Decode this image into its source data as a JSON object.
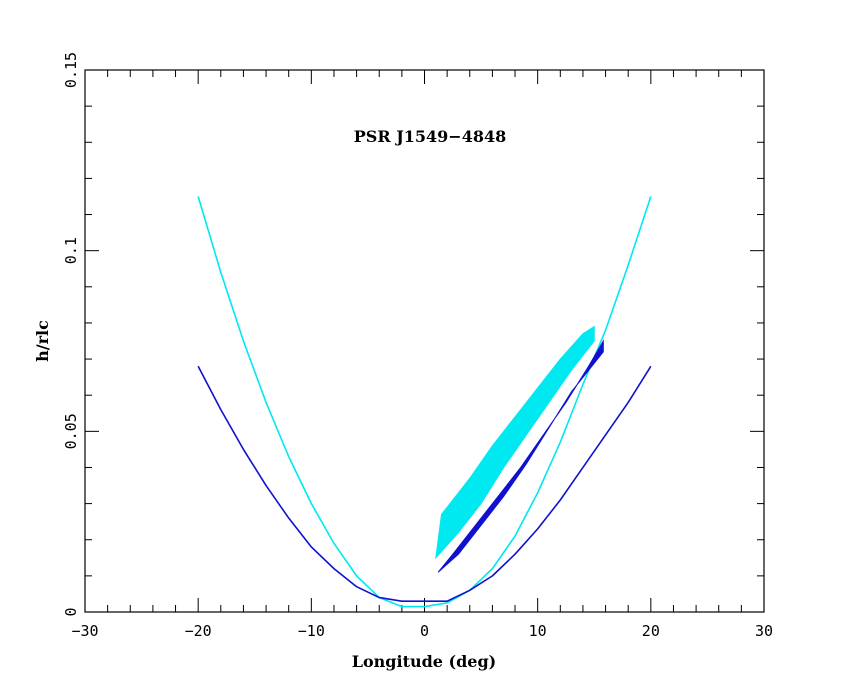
{
  "chart_data": {
    "type": "line",
    "title": "PSR J1549−4848",
    "xlabel": "Longitude (deg)",
    "ylabel": "h/rlc",
    "xlim": [
      -30,
      30
    ],
    "ylim": [
      0,
      0.15
    ],
    "x_ticks": [
      -30,
      -20,
      -10,
      0,
      10,
      20,
      30
    ],
    "x_tick_labels": [
      "−30",
      "−20",
      "−10",
      "0",
      "10",
      "20",
      "30"
    ],
    "y_ticks": [
      0,
      0.05,
      0.1,
      0.15
    ],
    "y_tick_labels": [
      "0",
      "0.05",
      "0.1",
      "0.15"
    ],
    "grid": false,
    "colors": {
      "cyan": "#00e8f0",
      "blue": "#1010d0"
    },
    "series": [
      {
        "color": "cyan",
        "kind": "curve",
        "x": [
          -20,
          -18,
          -16,
          -14,
          -12,
          -10,
          -8,
          -6,
          -4,
          -2,
          0,
          2,
          4,
          6,
          8,
          10,
          12,
          14,
          16,
          18,
          20
        ],
        "y": [
          0.115,
          0.094,
          0.075,
          0.058,
          0.043,
          0.03,
          0.019,
          0.01,
          0.004,
          0.0015,
          0.0015,
          0.0025,
          0.006,
          0.012,
          0.021,
          0.033,
          0.047,
          0.063,
          0.078,
          0.096,
          0.115
        ]
      },
      {
        "color": "blue",
        "kind": "curve",
        "x": [
          -20,
          -18,
          -16,
          -14,
          -12,
          -10,
          -8,
          -6,
          -4,
          -2,
          0,
          2,
          4,
          6,
          8,
          10,
          12,
          14,
          16,
          18,
          20
        ],
        "y": [
          0.068,
          0.056,
          0.045,
          0.035,
          0.026,
          0.018,
          0.012,
          0.007,
          0.004,
          0.003,
          0.003,
          0.003,
          0.006,
          0.01,
          0.016,
          0.023,
          0.031,
          0.04,
          0.049,
          0.058,
          0.068
        ]
      },
      {
        "color": "cyan",
        "kind": "band",
        "upper": {
          "x": [
            1.5,
            4,
            6,
            8,
            10,
            12,
            14,
            15
          ],
          "y": [
            0.027,
            0.037,
            0.046,
            0.054,
            0.062,
            0.07,
            0.077,
            0.079
          ]
        },
        "lower": {
          "x": [
            1,
            3,
            5,
            7,
            9,
            11,
            13,
            15
          ],
          "y": [
            0.015,
            0.022,
            0.03,
            0.04,
            0.049,
            0.058,
            0.067,
            0.075
          ]
        }
      },
      {
        "color": "blue",
        "kind": "band",
        "upper": {
          "x": [
            2.5,
            4.5,
            6.5,
            8.5,
            10.5,
            12.5,
            14.5,
            15.8
          ],
          "y": [
            0.016,
            0.024,
            0.032,
            0.04,
            0.049,
            0.058,
            0.068,
            0.075
          ]
        },
        "lower": {
          "x": [
            1.2,
            3,
            5,
            7,
            9,
            11,
            13,
            15.8
          ],
          "y": [
            0.011,
            0.016,
            0.024,
            0.032,
            0.041,
            0.051,
            0.061,
            0.072
          ]
        }
      }
    ]
  }
}
